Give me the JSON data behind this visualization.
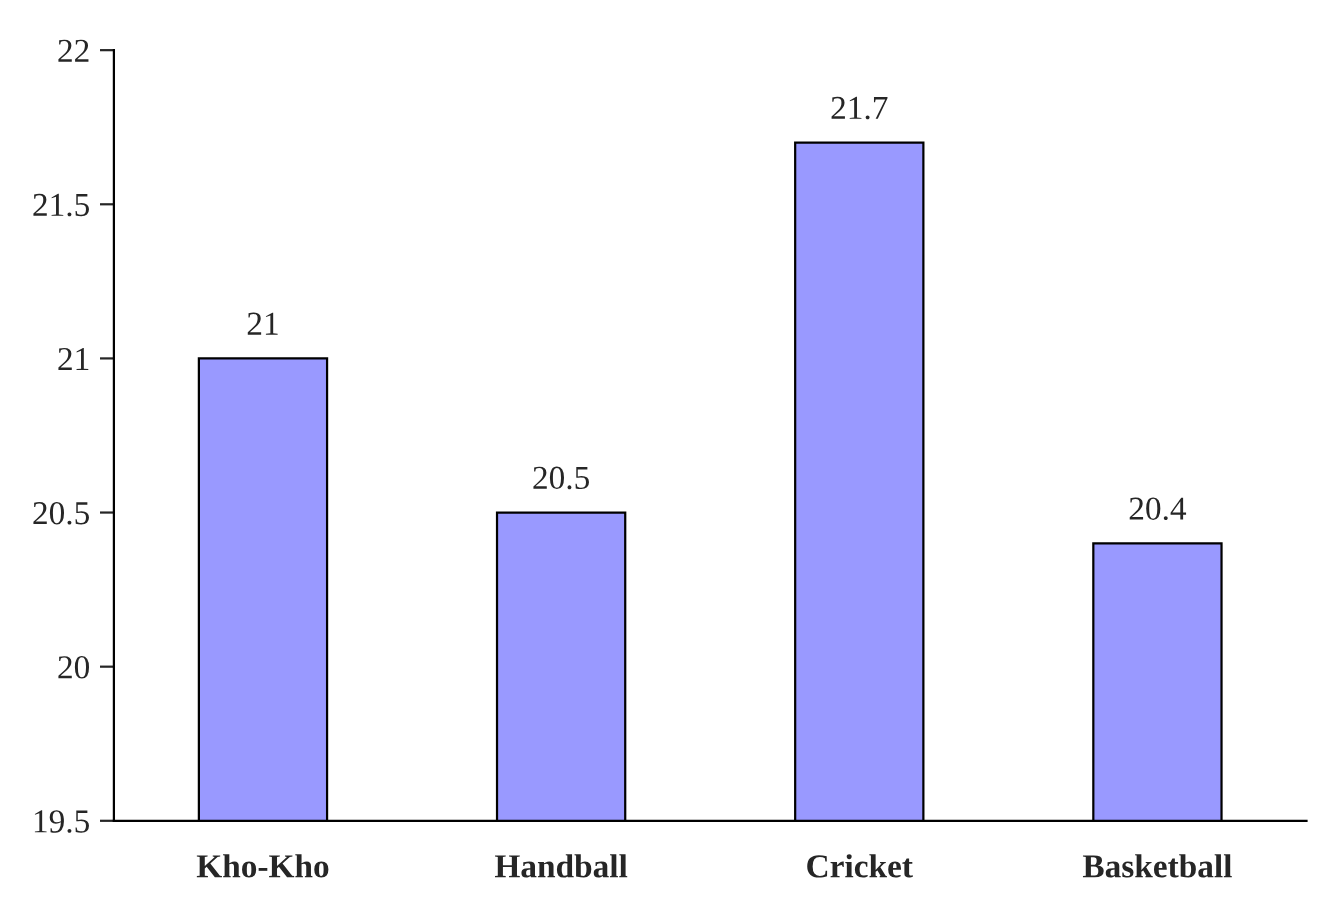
{
  "chart_data": {
    "type": "bar",
    "categories": [
      "Kho-Kho",
      "Handball",
      "Cricket",
      "Basketball"
    ],
    "values": [
      21,
      20.5,
      21.7,
      20.4
    ],
    "color": "#9999ff",
    "ylim": [
      19.5,
      22
    ],
    "yticks": [
      19.5,
      20,
      20.5,
      21,
      21.5,
      22
    ],
    "data_labels": true,
    "grid": false,
    "legend": false
  }
}
